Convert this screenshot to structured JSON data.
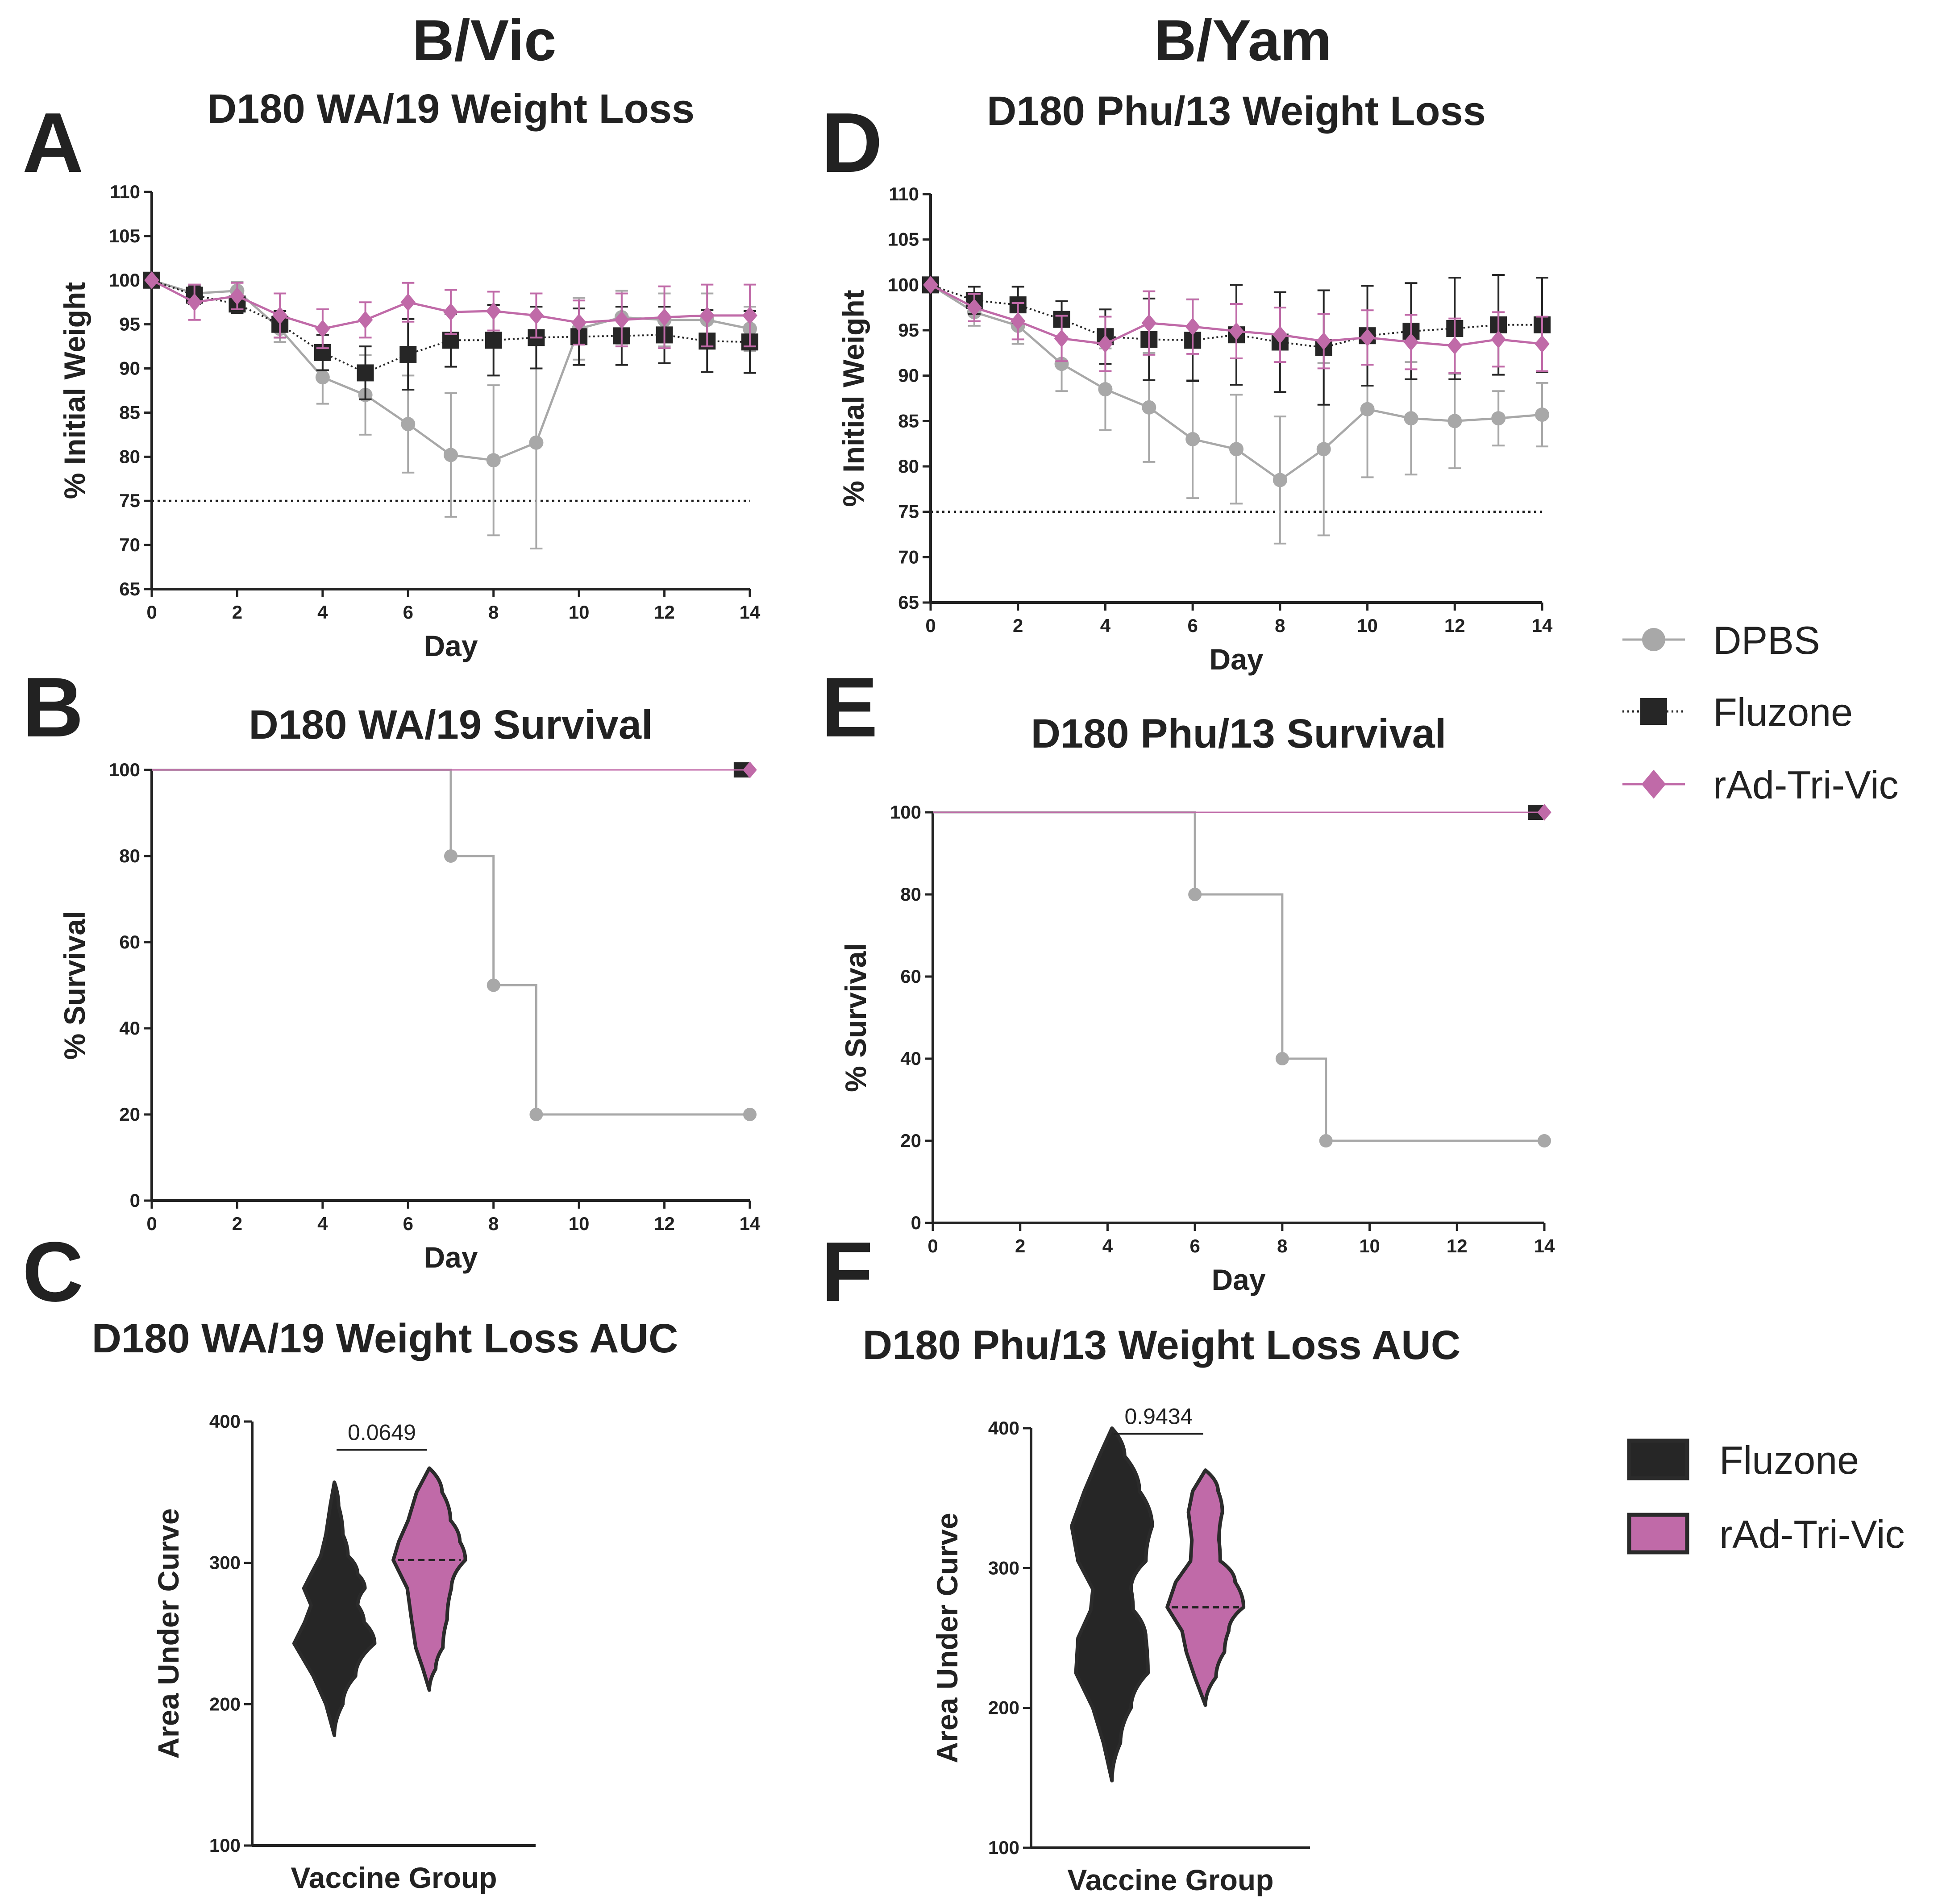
{
  "columns": {
    "left": "B/Vic",
    "right": "B/Yam"
  },
  "panel_letters": [
    "A",
    "B",
    "C",
    "D",
    "E",
    "F"
  ],
  "colors": {
    "dpbs": "#a8a8a8",
    "fluzone": "#262626",
    "rad": "#c06aa8",
    "axis": "#222222"
  },
  "legend_lines": [
    {
      "label": "DPBS",
      "color": "#a8a8a8",
      "marker": "circle"
    },
    {
      "label": "Fluzone",
      "color": "#262626",
      "marker": "square"
    },
    {
      "label": "rAd-Tri-Vic",
      "color": "#c06aa8",
      "marker": "diamond"
    }
  ],
  "legend_violins": [
    {
      "label": "Fluzone",
      "color": "#262626"
    },
    {
      "label": "rAd-Tri-Vic",
      "color": "#c06aa8"
    }
  ],
  "chart_data": [
    {
      "id": "A",
      "type": "line",
      "title": "D180 WA/19 Weight Loss",
      "xlabel": "Day",
      "ylabel": "% Initial Weight",
      "xlim": [
        0,
        14
      ],
      "ylim": [
        65,
        110
      ],
      "xticks": [
        0,
        2,
        4,
        6,
        8,
        10,
        12,
        14
      ],
      "yticks": [
        65,
        70,
        75,
        80,
        85,
        90,
        95,
        100,
        105,
        110
      ],
      "threshold": 75,
      "series": [
        {
          "name": "DPBS",
          "x": [
            0,
            1,
            2,
            3,
            4,
            5,
            6,
            7,
            8,
            9,
            10,
            11,
            12,
            13,
            14
          ],
          "y": [
            100,
            98.5,
            98.8,
            94.5,
            89,
            87,
            83.7,
            80.2,
            79.6,
            81.6,
            94.5,
            95.8,
            95.5,
            95.5,
            94.5
          ],
          "err": [
            0,
            1,
            1,
            1.5,
            3,
            4.5,
            5.5,
            7,
            8.5,
            12,
            3.5,
            3,
            3,
            3,
            2.5
          ]
        },
        {
          "name": "Fluzone",
          "x": [
            0,
            1,
            2,
            3,
            4,
            5,
            6,
            7,
            8,
            9,
            10,
            11,
            12,
            13,
            14
          ],
          "y": [
            100,
            98.3,
            97.3,
            95,
            91.8,
            89.5,
            91.6,
            93.2,
            93.2,
            93.5,
            93.6,
            93.7,
            93.8,
            93.1,
            93
          ],
          "err": [
            0,
            1,
            1,
            1.5,
            2,
            3,
            4,
            3,
            4,
            3.5,
            3.2,
            3.3,
            3.2,
            3.5,
            3.5
          ]
        },
        {
          "name": "rAd-Tri-Vic",
          "x": [
            0,
            1,
            2,
            3,
            4,
            5,
            6,
            7,
            8,
            9,
            10,
            11,
            12,
            13,
            14
          ],
          "y": [
            100,
            97.5,
            98.2,
            96,
            94.5,
            95.5,
            97.5,
            96.4,
            96.5,
            96,
            95.2,
            95.5,
            95.8,
            96,
            96
          ],
          "err": [
            0,
            2,
            1.5,
            2.5,
            2.2,
            2,
            2.2,
            2.5,
            2.2,
            2.5,
            2.5,
            3,
            3.5,
            3.5,
            3.5
          ]
        }
      ]
    },
    {
      "id": "B",
      "type": "line",
      "title": "D180 WA/19 Survival",
      "xlabel": "Day",
      "ylabel": "% Survival",
      "xlim": [
        0,
        14
      ],
      "ylim": [
        0,
        100
      ],
      "xticks": [
        0,
        2,
        4,
        6,
        8,
        10,
        12,
        14
      ],
      "yticks": [
        0,
        20,
        40,
        60,
        80,
        100
      ],
      "series": [
        {
          "name": "DPBS",
          "step_x": [
            0,
            7,
            7,
            8,
            8,
            9,
            9,
            14
          ],
          "step_y": [
            100,
            100,
            80,
            80,
            50,
            50,
            20,
            20
          ],
          "points_x": [
            7,
            8,
            9,
            14
          ],
          "points_y": [
            80,
            50,
            20,
            20
          ]
        },
        {
          "name": "Fluzone",
          "step_x": [
            0,
            14
          ],
          "step_y": [
            100,
            100
          ],
          "points_x": [
            13.8
          ],
          "points_y": [
            100
          ]
        },
        {
          "name": "rAd-Tri-Vic",
          "step_x": [
            0,
            14
          ],
          "step_y": [
            100,
            100
          ],
          "points_x": [
            14
          ],
          "points_y": [
            100
          ]
        }
      ]
    },
    {
      "id": "C",
      "type": "violin",
      "title": "D180 WA/19 Weight Loss AUC",
      "xlabel": "Vaccine Group",
      "ylabel": "Area Under Curve",
      "ylim": [
        100,
        400
      ],
      "yticks": [
        100,
        200,
        300,
        400
      ],
      "comparison_p": "0.0649",
      "groups": [
        {
          "name": "Fluzone",
          "y_min": 178,
          "y_max": 357,
          "profile": [
            [
              178,
              0
            ],
            [
              200,
              0.2
            ],
            [
              220,
              0.5
            ],
            [
              243,
              0.95
            ],
            [
              258,
              0.7
            ],
            [
              270,
              0.55
            ],
            [
              282,
              0.72
            ],
            [
              292,
              0.55
            ],
            [
              305,
              0.32
            ],
            [
              320,
              0.2
            ],
            [
              340,
              0.1
            ],
            [
              357,
              0
            ]
          ],
          "median": 270
        },
        {
          "name": "rAd-Tri-Vic",
          "y_min": 210,
          "y_max": 367,
          "profile": [
            [
              210,
              0
            ],
            [
              225,
              0.15
            ],
            [
              240,
              0.32
            ],
            [
              260,
              0.42
            ],
            [
              282,
              0.52
            ],
            [
              302,
              0.85
            ],
            [
              315,
              0.72
            ],
            [
              330,
              0.5
            ],
            [
              350,
              0.3
            ],
            [
              367,
              0
            ]
          ],
          "median": 302
        }
      ]
    },
    {
      "id": "D",
      "type": "line",
      "title": "D180 Phu/13 Weight Loss",
      "xlabel": "Day",
      "ylabel": "% Initial Weight",
      "xlim": [
        0,
        14
      ],
      "ylim": [
        65,
        110
      ],
      "xticks": [
        0,
        2,
        4,
        6,
        8,
        10,
        12,
        14
      ],
      "yticks": [
        65,
        70,
        75,
        80,
        85,
        90,
        95,
        100,
        105,
        110
      ],
      "threshold": 75,
      "series": [
        {
          "name": "DPBS",
          "x": [
            0,
            1,
            2,
            3,
            4,
            5,
            6,
            7,
            8,
            9,
            10,
            11,
            12,
            13,
            14
          ],
          "y": [
            100,
            97,
            95.5,
            91.3,
            88.5,
            86.5,
            83,
            81.9,
            78.5,
            81.9,
            86.3,
            85.3,
            85,
            85.3,
            85.7
          ],
          "err": [
            0,
            1.5,
            2,
            3,
            4.5,
            6,
            6.5,
            6,
            7,
            9.5,
            7.5,
            6.2,
            5.2,
            3,
            3.5
          ]
        },
        {
          "name": "Fluzone",
          "x": [
            0,
            1,
            2,
            3,
            4,
            5,
            6,
            7,
            8,
            9,
            10,
            11,
            12,
            13,
            14
          ],
          "y": [
            100,
            98.3,
            97.8,
            96.2,
            94.3,
            94,
            93.9,
            94.5,
            93.7,
            93.1,
            94.4,
            94.9,
            95.2,
            95.6,
            95.6
          ],
          "err": [
            0,
            1.5,
            2,
            2,
            3,
            4.5,
            4.5,
            5.5,
            5.5,
            6.3,
            5.5,
            5.3,
            5.6,
            5.5,
            5.2
          ]
        },
        {
          "name": "rAd-Tri-Vic",
          "x": [
            0,
            1,
            2,
            3,
            4,
            5,
            6,
            7,
            8,
            9,
            10,
            11,
            12,
            13,
            14
          ],
          "y": [
            100,
            97.5,
            96,
            94.1,
            93.5,
            95.8,
            95.4,
            94.9,
            94.5,
            93.8,
            94.2,
            93.7,
            93.3,
            94,
            93.5
          ],
          "err": [
            0,
            1.5,
            2,
            2.5,
            3,
            3.5,
            3,
            3,
            3,
            3,
            3,
            3,
            3,
            3,
            3
          ]
        }
      ]
    },
    {
      "id": "E",
      "type": "line",
      "title": "D180 Phu/13 Survival",
      "xlabel": "Day",
      "ylabel": "% Survival",
      "xlim": [
        0,
        14
      ],
      "ylim": [
        0,
        100
      ],
      "xticks": [
        0,
        2,
        4,
        6,
        8,
        10,
        12,
        14
      ],
      "yticks": [
        0,
        20,
        40,
        60,
        80,
        100
      ],
      "series": [
        {
          "name": "DPBS",
          "step_x": [
            0,
            6,
            6,
            8,
            8,
            9,
            9,
            14
          ],
          "step_y": [
            100,
            100,
            80,
            80,
            40,
            40,
            20,
            20
          ],
          "points_x": [
            6,
            8,
            9,
            14
          ],
          "points_y": [
            80,
            40,
            20,
            20
          ]
        },
        {
          "name": "Fluzone",
          "step_x": [
            0,
            14
          ],
          "step_y": [
            100,
            100
          ],
          "points_x": [
            13.8
          ],
          "points_y": [
            100
          ]
        },
        {
          "name": "rAd-Tri-Vic",
          "step_x": [
            0,
            14
          ],
          "step_y": [
            100,
            100
          ],
          "points_x": [
            14
          ],
          "points_y": [
            100
          ]
        }
      ]
    },
    {
      "id": "F",
      "type": "violin",
      "title": "D180 Phu/13 Weight Loss AUC",
      "xlabel": "Vaccine Group",
      "ylabel": "Area Under Curve",
      "ylim": [
        100,
        400
      ],
      "yticks": [
        100,
        200,
        300,
        400
      ],
      "comparison_p": "0.9434",
      "groups": [
        {
          "name": "Fluzone",
          "y_min": 148,
          "y_max": 400,
          "profile": [
            [
              148,
              0
            ],
            [
              175,
              0.2
            ],
            [
              200,
              0.45
            ],
            [
              225,
              0.85
            ],
            [
              250,
              0.8
            ],
            [
              270,
              0.5
            ],
            [
              285,
              0.45
            ],
            [
              305,
              0.8
            ],
            [
              330,
              0.95
            ],
            [
              355,
              0.65
            ],
            [
              380,
              0.3
            ],
            [
              400,
              0
            ]
          ],
          "median": 285
        },
        {
          "name": "rAd-Tri-Vic",
          "y_min": 202,
          "y_max": 370,
          "profile": [
            [
              202,
              0
            ],
            [
              222,
              0.25
            ],
            [
              240,
              0.45
            ],
            [
              255,
              0.55
            ],
            [
              272,
              0.9
            ],
            [
              290,
              0.7
            ],
            [
              305,
              0.35
            ],
            [
              320,
              0.32
            ],
            [
              340,
              0.4
            ],
            [
              355,
              0.3
            ],
            [
              370,
              0
            ]
          ],
          "median": 272
        }
      ]
    }
  ]
}
